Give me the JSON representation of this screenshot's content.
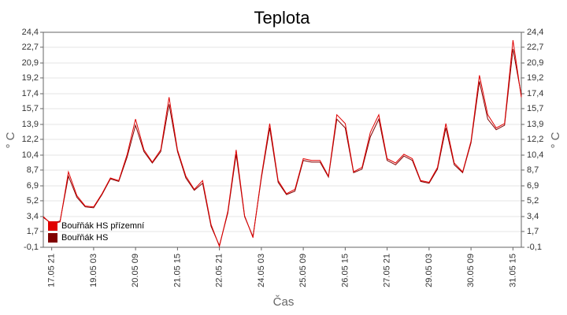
{
  "chart_data": {
    "type": "line",
    "title": "Teplota",
    "x_label": "Čas",
    "y_label": "° C",
    "y2_label": "° C",
    "categories": [
      null,
      "17.05 21",
      null,
      null,
      null,
      null,
      "19.05 03",
      null,
      null,
      null,
      null,
      "20.05 09",
      null,
      null,
      null,
      null,
      "21.05 15",
      null,
      null,
      null,
      null,
      "22.05 21",
      null,
      null,
      null,
      null,
      "24.05 03",
      null,
      null,
      null,
      null,
      "25.05 09",
      null,
      null,
      null,
      null,
      "26.05 15",
      null,
      null,
      null,
      null,
      "27.05 21",
      null,
      null,
      null,
      null,
      "29.05 03",
      null,
      null,
      null,
      null,
      "30.05 09",
      null,
      null,
      null,
      null,
      "31.05 15",
      null
    ],
    "series": [
      {
        "name": "Bouřňák HS přízemní",
        "color": "#e00000",
        "values": [
          3.4,
          2.5,
          2.8,
          8.5,
          5.8,
          4.6,
          4.5,
          6.0,
          7.8,
          7.5,
          10.5,
          14.5,
          11.0,
          9.6,
          11.0,
          17.0,
          11.0,
          8.0,
          6.5,
          7.5,
          2.5,
          0.0,
          4.0,
          11.0,
          3.5,
          1.0,
          8.0,
          14.0,
          7.5,
          6.0,
          6.5,
          10.0,
          9.8,
          9.8,
          8.0,
          15.0,
          14.0,
          8.5,
          9.0,
          13.0,
          15.0,
          10.0,
          9.5,
          10.5,
          10.0,
          7.5,
          7.3,
          9.0,
          14.0,
          9.5,
          8.5,
          12.0,
          19.5,
          15.0,
          13.5,
          14.0,
          23.5,
          17.0
        ]
      },
      {
        "name": "Bouřňák HS",
        "color": "#800000",
        "values": [
          3.3,
          2.6,
          2.9,
          8.0,
          5.6,
          4.5,
          4.4,
          5.9,
          7.7,
          7.4,
          10.2,
          13.8,
          10.8,
          9.5,
          10.8,
          16.2,
          10.8,
          7.8,
          6.4,
          7.2,
          2.3,
          0.1,
          3.8,
          10.5,
          3.4,
          1.1,
          7.8,
          13.5,
          7.3,
          5.9,
          6.3,
          9.8,
          9.6,
          9.6,
          7.9,
          14.5,
          13.5,
          8.4,
          8.8,
          12.5,
          14.5,
          9.8,
          9.3,
          10.3,
          9.8,
          7.4,
          7.2,
          8.8,
          13.5,
          9.3,
          8.4,
          11.8,
          18.8,
          14.5,
          13.3,
          13.8,
          22.5,
          17.2
        ]
      }
    ],
    "ylim": [
      -0.1,
      24.4
    ],
    "yticks": [
      {
        "value": -0.1,
        "label": "-0,1"
      },
      {
        "value": 1.7,
        "label": "1,7"
      },
      {
        "value": 3.4,
        "label": "3,4"
      },
      {
        "value": 5.2,
        "label": "5,2"
      },
      {
        "value": 6.9,
        "label": "6,9"
      },
      {
        "value": 8.7,
        "label": "8,7"
      },
      {
        "value": 10.4,
        "label": "10,4"
      },
      {
        "value": 12.2,
        "label": "12,2"
      },
      {
        "value": 13.9,
        "label": "13,9"
      },
      {
        "value": 15.7,
        "label": "15,7"
      },
      {
        "value": 17.4,
        "label": "17,4"
      },
      {
        "value": 19.2,
        "label": "19,2"
      },
      {
        "value": 20.9,
        "label": "20,9"
      },
      {
        "value": 22.7,
        "label": "22,7"
      },
      {
        "value": 24.4,
        "label": "24,4"
      }
    ],
    "y2lim": [
      -0.1,
      24.4
    ],
    "y2ticks": [
      {
        "value": -0.1,
        "label": "-0,1"
      },
      {
        "value": 1.7,
        "label": "1,7"
      },
      {
        "value": 3.4,
        "label": "3,4"
      },
      {
        "value": 5.2,
        "label": "5,2"
      },
      {
        "value": 6.9,
        "label": "6,9"
      },
      {
        "value": 8.7,
        "label": "8,7"
      },
      {
        "value": 10.4,
        "label": "10,4"
      },
      {
        "value": 12.2,
        "label": "12,2"
      },
      {
        "value": 13.9,
        "label": "13,9"
      },
      {
        "value": 15.7,
        "label": "15,7"
      },
      {
        "value": 17.4,
        "label": "17,4"
      },
      {
        "value": 19.2,
        "label": "19,2"
      },
      {
        "value": 20.9,
        "label": "20,9"
      },
      {
        "value": 22.7,
        "label": "22,7"
      },
      {
        "value": 24.4,
        "label": "24,4"
      }
    ],
    "grid": true,
    "legend": "lower left"
  }
}
